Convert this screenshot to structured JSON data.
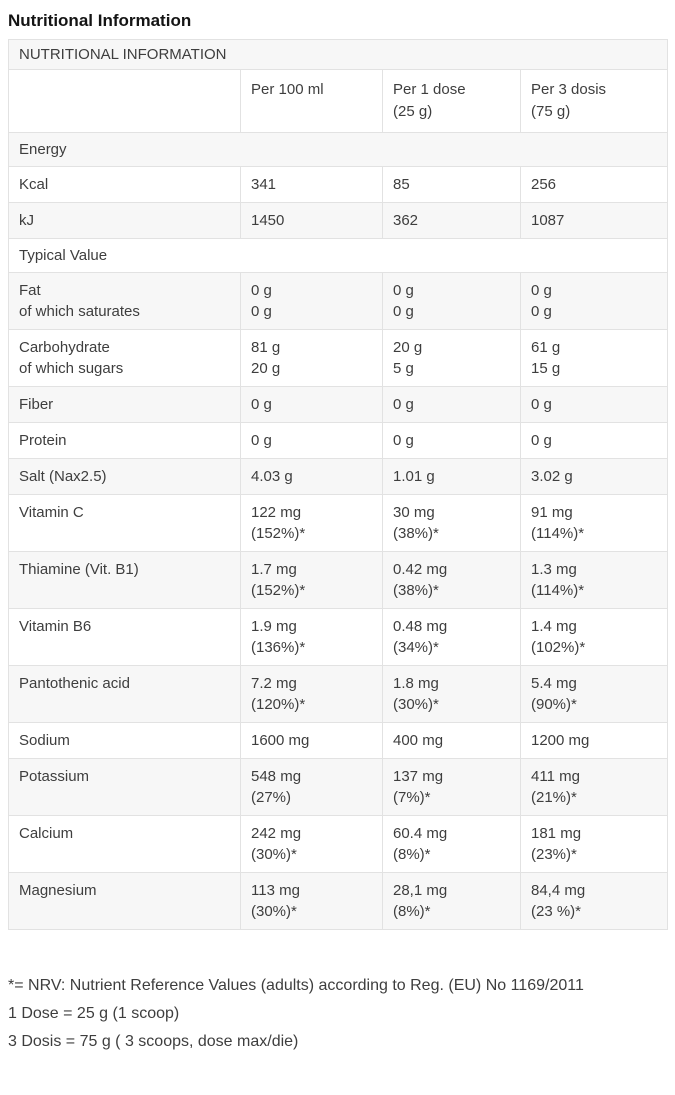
{
  "page": {
    "title": "Nutritional Information"
  },
  "table": {
    "title": "NUTRITIONAL INFORMATION",
    "column_headers": [
      {
        "lines": [
          ""
        ]
      },
      {
        "lines": [
          "Per 100 ml"
        ]
      },
      {
        "lines": [
          "Per 1 dose",
          "(25 g)"
        ]
      },
      {
        "lines": [
          "Per 3 dosis",
          "(75 g)"
        ]
      }
    ],
    "rows": [
      {
        "type": "section",
        "label": "Energy"
      },
      {
        "type": "data",
        "label": [
          "Kcal"
        ],
        "per_100ml": [
          "341"
        ],
        "per_1_dose": [
          "85"
        ],
        "per_3_dosis": [
          "256"
        ]
      },
      {
        "type": "data",
        "label": [
          "kJ"
        ],
        "per_100ml": [
          "1450"
        ],
        "per_1_dose": [
          "362"
        ],
        "per_3_dosis": [
          "1087"
        ]
      },
      {
        "type": "section",
        "label": "Typical Value"
      },
      {
        "type": "data",
        "label": [
          "Fat",
          "of which saturates"
        ],
        "per_100ml": [
          "0 g",
          "0 g"
        ],
        "per_1_dose": [
          "0 g",
          "0 g"
        ],
        "per_3_dosis": [
          "0 g",
          "0 g"
        ]
      },
      {
        "type": "data",
        "label": [
          "Carbohydrate",
          "of which sugars"
        ],
        "per_100ml": [
          "81 g",
          "20 g"
        ],
        "per_1_dose": [
          "20 g",
          "5 g"
        ],
        "per_3_dosis": [
          "61 g",
          "15 g"
        ]
      },
      {
        "type": "data",
        "label": [
          "Fiber"
        ],
        "per_100ml": [
          "0 g"
        ],
        "per_1_dose": [
          "0 g"
        ],
        "per_3_dosis": [
          "0 g"
        ]
      },
      {
        "type": "data",
        "label": [
          "Protein"
        ],
        "per_100ml": [
          "0 g"
        ],
        "per_1_dose": [
          "0 g"
        ],
        "per_3_dosis": [
          "0 g"
        ]
      },
      {
        "type": "data",
        "label": [
          "Salt (Nax2.5)"
        ],
        "per_100ml": [
          "4.03 g"
        ],
        "per_1_dose": [
          "1.01 g"
        ],
        "per_3_dosis": [
          "3.02 g"
        ]
      },
      {
        "type": "data",
        "label": [
          "Vitamin C"
        ],
        "per_100ml": [
          "122 mg",
          "(152%)*"
        ],
        "per_1_dose": [
          "30 mg",
          "(38%)*"
        ],
        "per_3_dosis": [
          "91 mg",
          "(114%)*"
        ]
      },
      {
        "type": "data",
        "label": [
          "Thiamine (Vit. B1)"
        ],
        "per_100ml": [
          "1.7 mg",
          "(152%)*"
        ],
        "per_1_dose": [
          "0.42 mg",
          "(38%)*"
        ],
        "per_3_dosis": [
          "1.3 mg",
          "(114%)*"
        ]
      },
      {
        "type": "data",
        "label": [
          "Vitamin B6"
        ],
        "per_100ml": [
          "1.9 mg",
          "(136%)*"
        ],
        "per_1_dose": [
          "0.48 mg",
          "(34%)*"
        ],
        "per_3_dosis": [
          "1.4 mg",
          "(102%)*"
        ]
      },
      {
        "type": "data",
        "label": [
          "Pantothenic acid"
        ],
        "per_100ml": [
          "7.2 mg",
          "(120%)*"
        ],
        "per_1_dose": [
          "1.8 mg",
          "(30%)*"
        ],
        "per_3_dosis": [
          "5.4 mg",
          "(90%)*"
        ]
      },
      {
        "type": "data",
        "label": [
          "Sodium"
        ],
        "per_100ml": [
          "1600 mg"
        ],
        "per_1_dose": [
          "400 mg"
        ],
        "per_3_dosis": [
          "1200 mg"
        ]
      },
      {
        "type": "data",
        "label": [
          "Potassium"
        ],
        "per_100ml": [
          "548 mg",
          "(27%)"
        ],
        "per_1_dose": [
          "137 mg",
          "(7%)*"
        ],
        "per_3_dosis": [
          "411 mg",
          "(21%)*"
        ]
      },
      {
        "type": "data",
        "label": [
          "Calcium"
        ],
        "per_100ml": [
          "242 mg",
          "(30%)*"
        ],
        "per_1_dose": [
          "60.4 mg",
          "(8%)*"
        ],
        "per_3_dosis": [
          "181 mg",
          "(23%)*"
        ]
      },
      {
        "type": "data",
        "label": [
          "Magnesium"
        ],
        "per_100ml": [
          "113 mg",
          "(30%)*"
        ],
        "per_1_dose": [
          "28,1 mg",
          "(8%)*"
        ],
        "per_3_dosis": [
          "84,4 mg",
          "(23 %)*"
        ]
      }
    ]
  },
  "footnotes": [
    "*= NRV: Nutrient Reference Values (adults) according to Reg. (EU) No 1169/2011",
    "1 Dose = 25 g (1 scoop)",
    "3 Dosis = 75 g ( 3 scoops, dose max/die)"
  ],
  "colors": {
    "stripe_background": "#f7f7f7",
    "border": "#e2e2e2",
    "body_text": "#3e3e3e",
    "title_text": "#141414"
  }
}
